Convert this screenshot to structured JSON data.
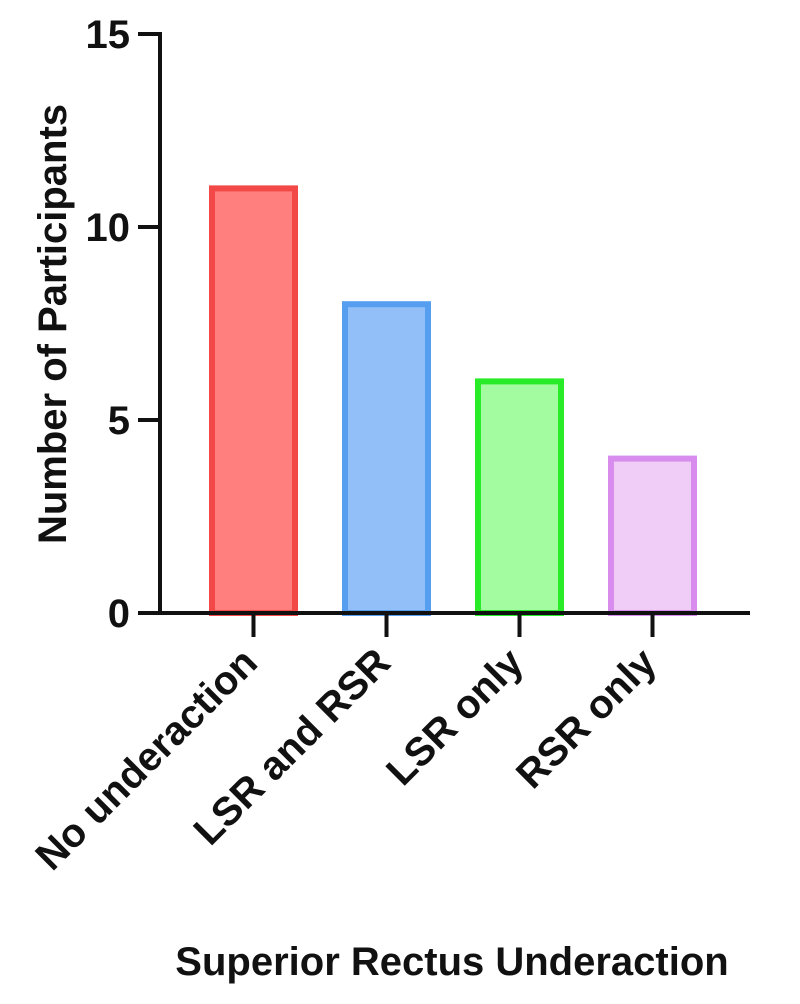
{
  "chart_data": {
    "type": "bar",
    "categories": [
      "No underaction",
      "LSR and RSR",
      "LSR only",
      "RSR only"
    ],
    "values": [
      11,
      8,
      6,
      4
    ],
    "xlabel": "Superior Rectus Underaction",
    "ylabel": "Number of Participants",
    "ylim": [
      0,
      15
    ],
    "yticks": [
      0,
      5,
      10,
      15
    ],
    "ytick_labels": [
      "0",
      "5",
      "10",
      "15"
    ],
    "grid": false,
    "legend": "none",
    "colors": {
      "fills": [
        "#ff7f7f",
        "#92bff7",
        "#a4fca0",
        "#efcdf6"
      ],
      "edges": [
        "#f24848",
        "#569ef0",
        "#27ec27",
        "#d88ced"
      ],
      "axis": "#111111"
    }
  }
}
